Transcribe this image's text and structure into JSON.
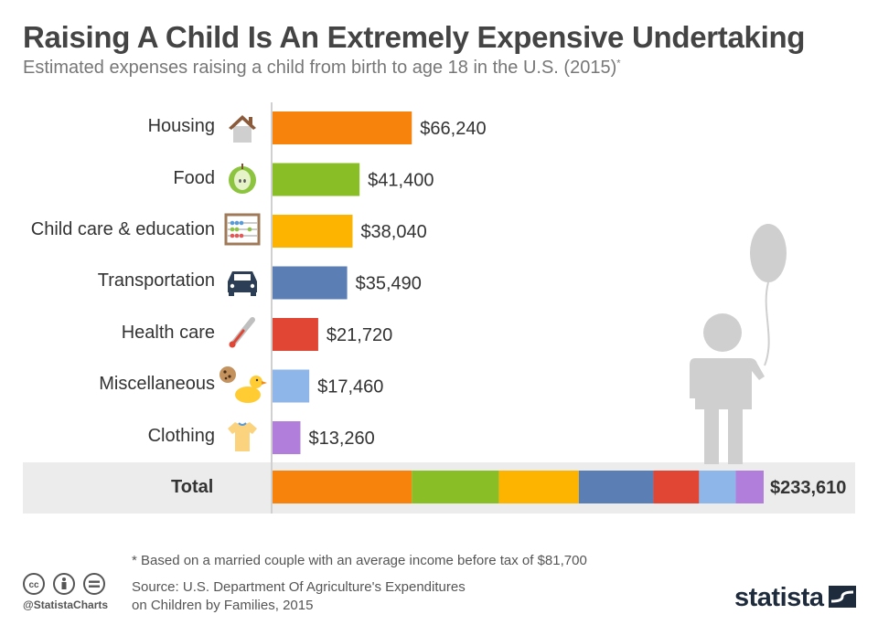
{
  "header": {
    "title": "Raising A Child Is An Extremely Expensive Undertaking",
    "subtitle": "Estimated expenses raising a child from birth to age 18 in the U.S. (2015)",
    "subtitle_marker": "*"
  },
  "chart_data": {
    "type": "bar",
    "orientation": "horizontal",
    "categories": [
      "Housing",
      "Food",
      "Child care & education",
      "Transportation",
      "Health care",
      "Miscellaneous",
      "Clothing"
    ],
    "values": [
      66240,
      41400,
      38040,
      35490,
      21720,
      17460,
      13260
    ],
    "value_labels": [
      "$66,240",
      "$41,400",
      "$38,040",
      "$35,490",
      "$21,720",
      "$17,460",
      "$13,260"
    ],
    "colors": [
      "#f7830d",
      "#8abe26",
      "#fdb400",
      "#5b7fb5",
      "#e04633",
      "#8fb6e8",
      "#b27edb"
    ],
    "icons": [
      "house-icon",
      "apple-icon",
      "abacus-icon",
      "car-icon",
      "thermometer-icon",
      "cookie-duck-icon",
      "tshirt-icon"
    ],
    "total": {
      "label": "Total",
      "value": 233610,
      "value_label": "$233,610",
      "type": "stacked-bar"
    },
    "grid": false
  },
  "footer": {
    "footnote": "* Based on a married couple with an average income before tax of $81,700",
    "source_line1": "Source: U.S. Department Of Agriculture's Expenditures",
    "source_line2": "on Children by Families, 2015",
    "handle": "@StatistaCharts",
    "logo_text": "statista"
  }
}
